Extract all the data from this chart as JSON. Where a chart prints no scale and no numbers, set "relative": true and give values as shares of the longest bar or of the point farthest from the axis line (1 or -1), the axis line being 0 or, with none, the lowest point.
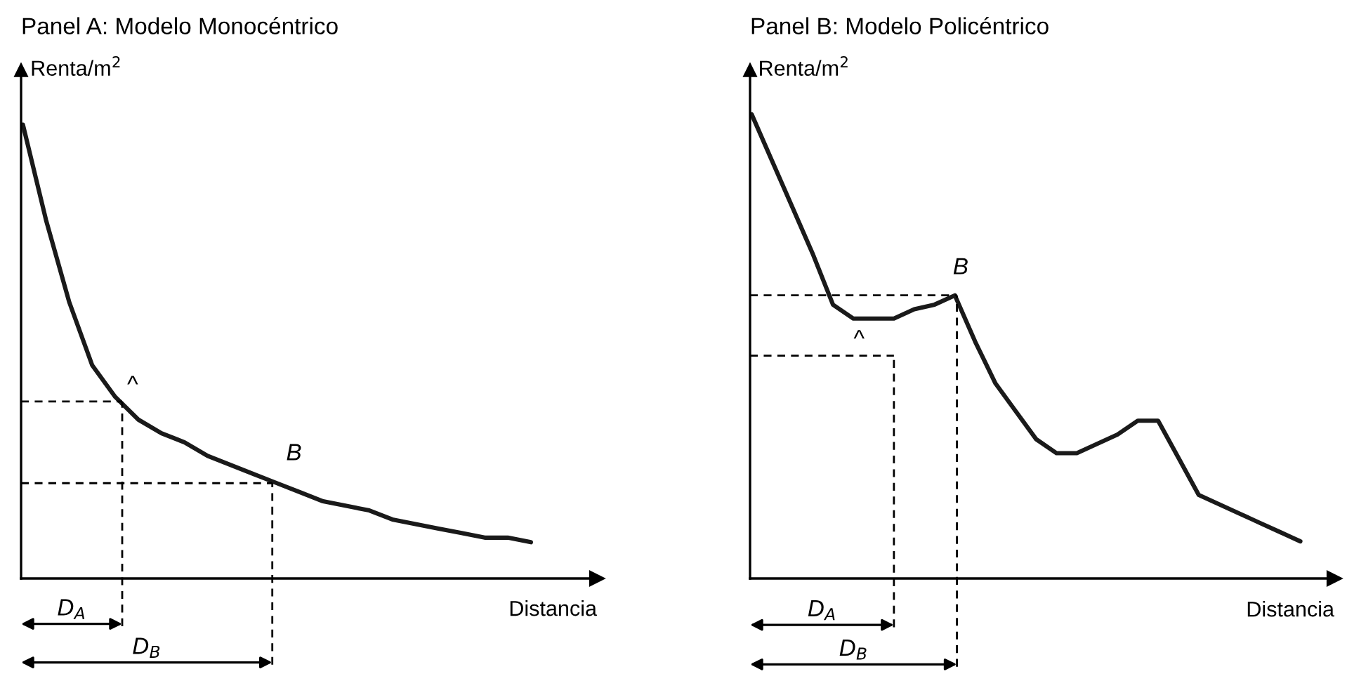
{
  "chart_data": [
    {
      "type": "line",
      "title": "Panel A: Modelo Monocéntrico",
      "xlabel": "Distancia",
      "ylabel": "Renta/m$^{2}$",
      "relative": true,
      "categories": [
        null,
        null,
        null,
        null,
        null,
        null,
        null,
        null,
        null,
        null,
        null,
        null,
        null,
        null,
        null,
        null,
        null,
        null,
        null,
        null,
        null,
        null,
        null
      ],
      "series": [
        {
          "color": "#1a1a1a",
          "values": [
            1.0,
            0.79,
            0.61,
            0.47,
            0.4,
            0.35,
            0.32,
            0.3,
            0.27,
            0.25,
            0.23,
            0.21,
            0.19,
            0.17,
            0.16,
            0.15,
            0.13,
            0.12,
            0.11,
            0.1,
            0.09,
            0.09,
            0.08
          ]
        }
      ],
      "ref_lines": [
        {
          "axis": "y",
          "value": 0.39,
          "color": "#000000",
          "line_style": "dashed"
        },
        {
          "axis": "y",
          "value": 0.21,
          "color": "#000000",
          "line_style": "dashed"
        }
      ],
      "annotations": [
        "^",
        "B",
        "D$_{A}$",
        "D$_{B}$"
      ]
    },
    {
      "type": "line",
      "title": "Panel B: Modelo Policéntrico",
      "xlabel": "Distancia",
      "ylabel": "Renta/m$^{2}$",
      "relative": true,
      "categories": [
        null,
        null,
        null,
        null,
        null,
        null,
        null,
        null,
        null,
        null,
        null,
        null,
        null,
        null,
        null,
        null,
        null,
        null,
        null,
        null,
        null,
        null,
        null,
        null,
        null,
        null,
        null,
        null
      ],
      "series": [
        {
          "color": "#1a1a1a",
          "values": [
            1.0,
            0.9,
            0.8,
            0.7,
            0.59,
            0.56,
            0.56,
            0.56,
            0.58,
            0.59,
            0.61,
            0.51,
            0.42,
            0.36,
            0.3,
            0.27,
            0.27,
            0.29,
            0.31,
            0.34,
            0.34,
            0.26,
            0.18,
            0.16,
            0.14,
            0.12,
            0.1,
            0.08
          ]
        }
      ],
      "ref_lines": [
        {
          "axis": "y",
          "value": 0.48,
          "color": "#000000",
          "line_style": "dashed"
        },
        {
          "axis": "y",
          "value": 0.61,
          "color": "#000000",
          "line_style": "dashed"
        }
      ],
      "annotations": [
        "^",
        "B",
        "D$_{A}$",
        "D$_{B}$"
      ]
    }
  ]
}
